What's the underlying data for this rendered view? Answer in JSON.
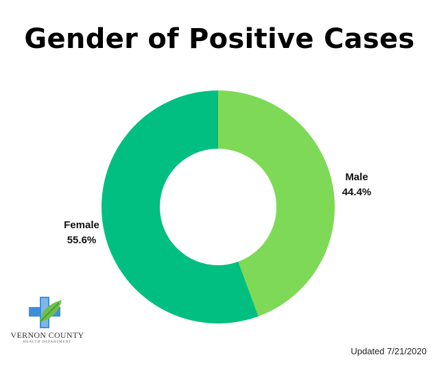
{
  "chart_data": {
    "type": "pie",
    "title": "Gender of Positive Cases",
    "donut": true,
    "slices": [
      {
        "label": "Male",
        "value": 44.4,
        "display": "44.4%",
        "color": "#7ed957"
      },
      {
        "label": "Female",
        "value": 55.6,
        "display": "55.6%",
        "color": "#00bf80"
      }
    ],
    "start_angle": "12 o'clock",
    "direction": "clockwise"
  },
  "logo": {
    "name": "VERNON COUNTY",
    "subtitle": "HEALTH DEPARTMENT",
    "colors": {
      "cross": "#3f8fd8",
      "leaf": "#6cc04a"
    }
  },
  "footer": {
    "updated": "Updated 7/21/2020"
  }
}
